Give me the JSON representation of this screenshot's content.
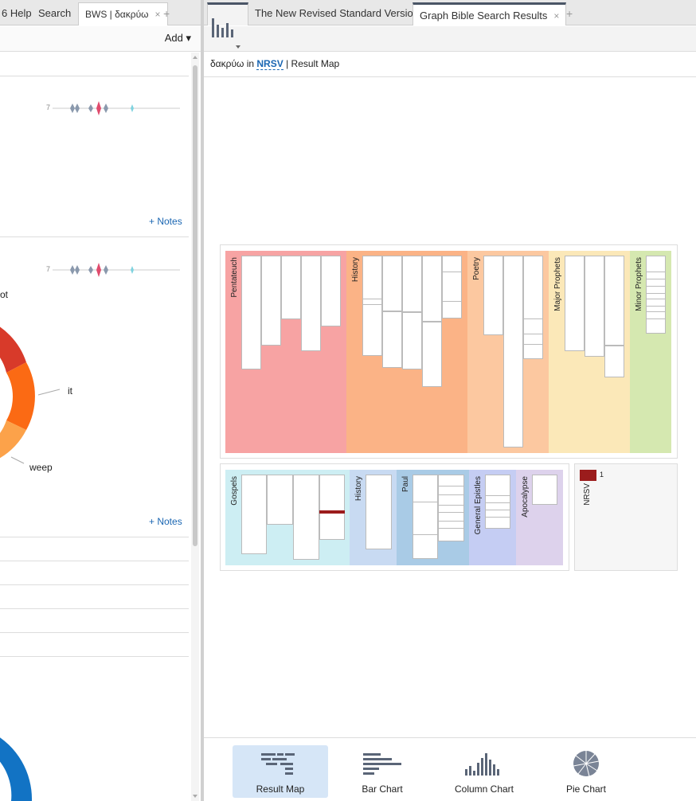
{
  "left_panel": {
    "tabs": [
      {
        "label": "6 Help"
      },
      {
        "label": "Search"
      },
      {
        "label": "BWS | δακρύω",
        "close": "×"
      }
    ],
    "new_tab": "+",
    "add_label": "Add ▾",
    "notes_label_1": "+ Notes",
    "notes_label_2": "+ Notes",
    "spark_count_1": "7",
    "spark_count_2": "7",
    "donut_labels": [
      "ot",
      "it",
      "weep"
    ]
  },
  "right_panel": {
    "tabs": [
      {
        "label": "The New Revised Standard Version"
      },
      {
        "label": "Graph Bible Search Results",
        "close": "×"
      }
    ],
    "new_tab": "+",
    "breadcrumb": {
      "term": "δακρύω in ",
      "version": "NRSV",
      "separator": " | ",
      "view": "Result Map"
    },
    "ot_sections": [
      "Pentateuch",
      "History",
      "Poetry",
      "Major Prophets",
      "Minor Prophets"
    ],
    "nt_sections": [
      "Gospels",
      "History",
      "Paul",
      "General Epistles",
      "Apocalypse"
    ],
    "legend": {
      "version": "NRSV",
      "count": "1",
      "color": "#9b1c1c"
    },
    "view_buttons": [
      {
        "label": "Result Map",
        "icon": "result-map-icon",
        "selected": true
      },
      {
        "label": "Bar Chart",
        "icon": "bar-chart-icon",
        "selected": false
      },
      {
        "label": "Column Chart",
        "icon": "column-chart-icon",
        "selected": false
      },
      {
        "label": "Pie Chart",
        "icon": "pie-chart-icon",
        "selected": false
      }
    ]
  },
  "colors": {
    "pentateuch": "#f7a3a3",
    "ot_history": "#fbb386",
    "poetry": "#fcc8a0",
    "major_prophets": "#fbe8b8",
    "minor_prophets": "#d5e8b0",
    "gospels": "#cdeef3",
    "nt_history": "#c8daf2",
    "paul": "#a9cbe6",
    "general_epistles": "#c5cdf3",
    "apocalypse": "#ddd2ec",
    "hit": "#9b1c1c",
    "donut_red": "#d83a2a",
    "donut_orange": "#fb6a14",
    "donut_light": "#fca24a",
    "donut_blue": "#1273c4"
  }
}
